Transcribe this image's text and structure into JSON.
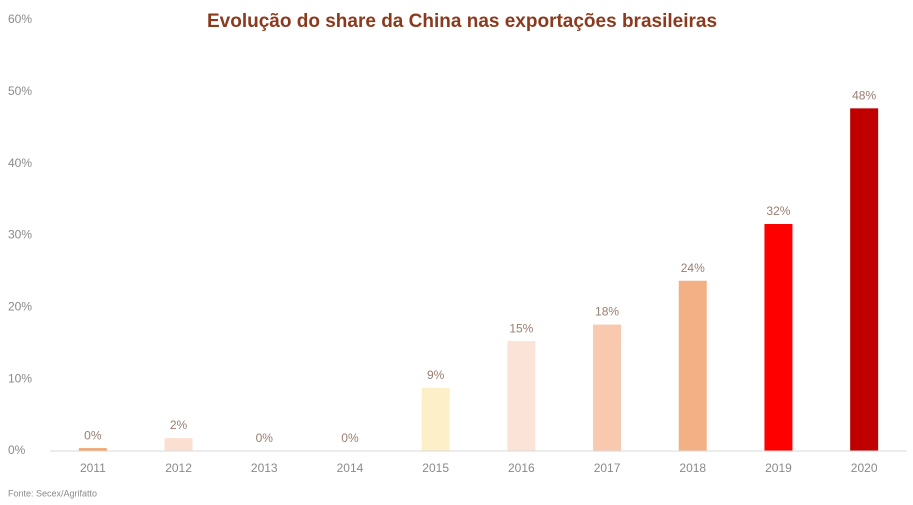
{
  "chart_data": {
    "type": "bar",
    "title": "Evolução do share da China nas exportações brasileiras",
    "source": "Fonte: Secex/Agrifatto",
    "categories": [
      "2011",
      "2012",
      "2013",
      "2014",
      "2015",
      "2016",
      "2017",
      "2018",
      "2019",
      "2020"
    ],
    "values": [
      0.4,
      1.8,
      0,
      0,
      8.8,
      15.3,
      17.6,
      23.7,
      31.6,
      47.7
    ],
    "value_labels": [
      "0%",
      "2%",
      "0%",
      "0%",
      "9%",
      "15%",
      "18%",
      "24%",
      "32%",
      "48%"
    ],
    "colors": [
      "#f2a46c",
      "#fbe0d2",
      "#fbe0d2",
      "#fbe0d2",
      "#fdf0c8",
      "#fbe3d8",
      "#f8c9ae",
      "#f3b084",
      "#ff0000",
      "#c00000"
    ],
    "ylim": [
      0,
      60
    ],
    "yticks": [
      {
        "value": 0,
        "label": "0%"
      },
      {
        "value": 10,
        "label": "10%"
      },
      {
        "value": 20,
        "label": "20%"
      },
      {
        "value": 30,
        "label": "30%"
      },
      {
        "value": 40,
        "label": "40%"
      },
      {
        "value": 50,
        "label": "50%"
      },
      {
        "value": 60,
        "label": "60%"
      }
    ],
    "grid": false
  }
}
